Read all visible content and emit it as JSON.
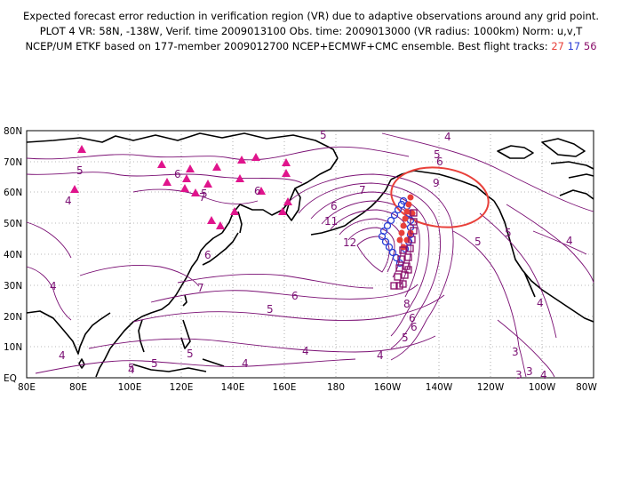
{
  "title": {
    "line1": "Expected forecast error reduction in verification region (VR) due to adaptive observations around any grid point.",
    "line2": "PLOT 4 VR: 58N, -138W, Verif. time 2009013100 Obs. time: 2009013000 (VR radius: 1000km) Norm: u,v,T",
    "line3_prefix": "NCEP/UM ETKF based on 177-member 2009012700 NCEP+ECMWF+CMC ensemble. Best flight tracks:",
    "track1": "27",
    "track2": "17",
    "track3": "56"
  },
  "colors": {
    "contour": "#7a0f73",
    "coast": "#000000",
    "verif_circle": "#e8403a",
    "track27": "#e8403a",
    "track17": "#2b3ed6",
    "track56": "#8a0f6a",
    "raob": "#e0148c"
  },
  "axes": {
    "lon_ticks": [
      "80E",
      "80E",
      "100E",
      "120E",
      "140E",
      "160E",
      "180",
      "160W",
      "140W",
      "120W",
      "100W",
      "80W"
    ],
    "lat_ticks": [
      "EQ",
      "10N",
      "20N",
      "30N",
      "40N",
      "50N",
      "60N",
      "70N",
      "80N"
    ]
  },
  "contour_labels": [
    "4",
    "5",
    "6",
    "7",
    "4",
    "5",
    "6",
    "6",
    "5",
    "4",
    "4",
    "5",
    "5",
    "6",
    "7",
    "9",
    "11",
    "12",
    "8",
    "7",
    "6",
    "5",
    "4",
    "6",
    "5",
    "4",
    "3",
    "4",
    "3",
    "4",
    "4",
    "5",
    "5",
    "4",
    "5",
    "4",
    "5",
    "3",
    "6",
    "6"
  ],
  "grid": "dotted"
}
